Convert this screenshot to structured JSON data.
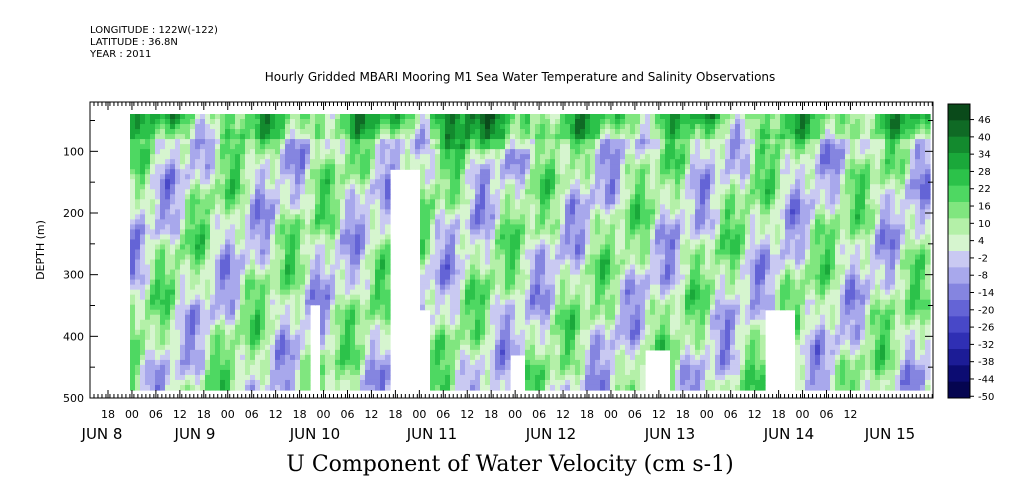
{
  "header": {
    "longitude": "LONGITUDE : 122W(-122)",
    "latitude": "LATITUDE : 36.8N",
    "year": "YEAR : 2011"
  },
  "title": "Hourly Gridded MBARI Mooring M1 Sea Water Temperature and Salinity Observations",
  "variable_label": "U Component of Water Velocity (cm s-1)",
  "chart_data": {
    "type": "heatmap",
    "title": "Hourly Gridded MBARI Mooring M1 Sea Water Temperature and Salinity Observations",
    "ylabel": "DEPTH (m)",
    "xlabel": "",
    "y_range": [
      500,
      20
    ],
    "y_ticks": [
      100,
      200,
      300,
      400,
      500
    ],
    "x_hour_labels": [
      "18",
      "00",
      "06",
      "12",
      "18",
      "00",
      "06",
      "12",
      "18",
      "00",
      "06",
      "12",
      "18",
      "00",
      "06",
      "12",
      "18",
      "00",
      "06",
      "12",
      "18",
      "00",
      "06",
      "12",
      "18",
      "00",
      "06",
      "12",
      "18",
      "00",
      "06",
      "12"
    ],
    "x_day_labels": [
      "JUN  8",
      "JUN  9",
      "JUN 10",
      "JUN 11",
      "JUN 12",
      "JUN 13",
      "JUN 14",
      "JUN 15"
    ],
    "x_range": [
      "2011-06-07 12:00",
      "2011-06-14 18:00"
    ],
    "colorbar": {
      "labels": [
        "46",
        "40",
        "34",
        "28",
        "22",
        "16",
        "10",
        "4",
        "-2",
        "-8",
        "-14",
        "-20",
        "-26",
        "-32",
        "-38",
        "-44",
        "-50"
      ],
      "min": -50,
      "max": 50,
      "colors": [
        "#0a4a1a",
        "#0f6a25",
        "#138a2e",
        "#1aa83a",
        "#2cc24a",
        "#4ed862",
        "#80e67f",
        "#b4f0a8",
        "#d6f5cf",
        "#c9c9f2",
        "#a8a8ec",
        "#8585e0",
        "#6464d6",
        "#4848c8",
        "#2f2fb4",
        "#1c1c96",
        "#0c0c72",
        "#050550"
      ]
    },
    "field_summary": "U velocity field; surface layer (~20-40 m) strongly positive (green), alternating blue/green diagonal bands below, gaps near bottom (blank where no data)"
  },
  "colors": {
    "negative": "#a3a3ee",
    "positive": "#86ea86",
    "surface": "#2bbf47"
  }
}
